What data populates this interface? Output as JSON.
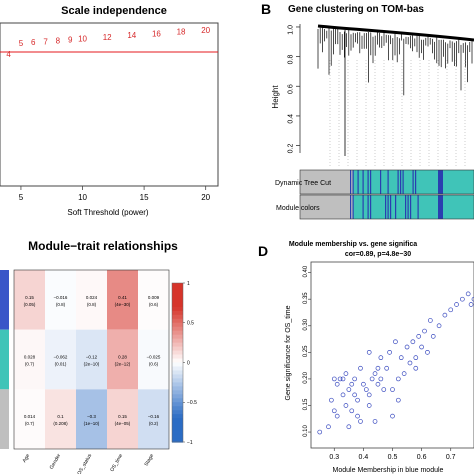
{
  "chart_data": [
    {
      "panel": "A",
      "type": "scatter",
      "title": "Scale independence",
      "xlabel": "Soft Threshold (power)",
      "x_ticks": [
        5,
        10,
        15,
        20
      ],
      "x": [
        4,
        5,
        6,
        7,
        8,
        9,
        10,
        12,
        14,
        16,
        18,
        20
      ],
      "point_labels": [
        "4",
        "5",
        "6",
        "7",
        "8",
        "9",
        "10",
        "12",
        "14",
        "16",
        "18",
        "20"
      ],
      "xlim": [
        3.3,
        21
      ],
      "threshold_line": true,
      "label_color": "#d62728",
      "line_color": "#e41a1c"
    },
    {
      "panel": "B",
      "type": "dendrogram",
      "panel_label": "B",
      "title": "Gene clustering on TOM-bas",
      "ylabel": "Height",
      "y_ticks": [
        "0.2",
        "0.4",
        "0.6",
        "0.8",
        "1.0"
      ],
      "ylim": [
        0.15,
        1.02
      ],
      "color_rows": [
        "Dynamic Tree Cut",
        "Module colors"
      ],
      "module_colors": {
        "turquoise": "#40c4b8",
        "blue": "#2a3fb0",
        "grey": "#bfbfbf"
      }
    },
    {
      "panel": "C",
      "type": "heatmap",
      "title": "Module−trait relationships",
      "columns": [
        "Age",
        "Gender",
        "OS_status",
        "OS_time",
        "Stage"
      ],
      "rows": [
        "blue",
        "turquoise",
        "grey"
      ],
      "row_colors": [
        "#3a56c8",
        "#40c4b8",
        "#bfbfbf"
      ],
      "cells": [
        [
          [
            "0.15",
            "(0.05)"
          ],
          [
            "−0.016",
            "(0.8)"
          ],
          [
            "0.024",
            "(0.8)"
          ],
          [
            "0.41",
            "(4e−30)"
          ],
          [
            "0.009",
            "(0.6)"
          ]
        ],
        [
          [
            "0.028",
            "(0.7)"
          ],
          [
            "−0.062",
            "(0.01)"
          ],
          [
            "−0.12",
            "(2e−10)"
          ],
          [
            "0.28",
            "(2e−12)"
          ],
          [
            "−0.025",
            "(0.6)"
          ]
        ],
        [
          [
            "0.014",
            "(0.7)"
          ],
          [
            "0.1",
            "(0.208)"
          ],
          [
            "−0.3",
            "(1e−10)"
          ],
          [
            "0.15",
            "(4e−05)"
          ],
          [
            "−0.16",
            "(0.2)"
          ]
        ]
      ],
      "values": [
        [
          0.15,
          -0.016,
          0.024,
          0.41,
          0.009
        ],
        [
          0.028,
          -0.062,
          -0.12,
          0.28,
          -0.025
        ],
        [
          0.014,
          0.1,
          -0.3,
          0.15,
          -0.16
        ]
      ],
      "scale_ticks": [
        "1",
        "0.5",
        "0",
        "−0.5",
        "−1"
      ],
      "scale_range": [
        -1,
        1
      ],
      "scale_colors": {
        "negative": "#2b6cc4",
        "zero": "#ffffff",
        "positive": "#d6342a"
      }
    },
    {
      "panel": "D",
      "type": "scatter",
      "panel_label": "D",
      "title": "Module membership vs. gene significa",
      "subtitle": "cor=0.89, p=4.8e−30",
      "xlabel": "Module Membership in blue module",
      "ylabel": "Gene significance for OS_time",
      "x_ticks": [
        "0.3",
        "0.4",
        "0.5",
        "0.6",
        "0.7"
      ],
      "y_ticks": [
        "0.10",
        "0.15",
        "0.20",
        "0.25",
        "0.30",
        "0.35",
        "0.40"
      ],
      "xlim": [
        0.22,
        0.78
      ],
      "ylim": [
        0.07,
        0.42
      ],
      "point_color": "#3b4cc0",
      "x": [
        0.25,
        0.28,
        0.29,
        0.3,
        0.31,
        0.31,
        0.32,
        0.33,
        0.33,
        0.34,
        0.35,
        0.35,
        0.36,
        0.37,
        0.37,
        0.38,
        0.39,
        0.39,
        0.4,
        0.41,
        0.42,
        0.42,
        0.43,
        0.44,
        0.45,
        0.45,
        0.46,
        0.47,
        0.48,
        0.49,
        0.5,
        0.5,
        0.51,
        0.52,
        0.53,
        0.54,
        0.55,
        0.56,
        0.57,
        0.58,
        0.59,
        0.6,
        0.61,
        0.62,
        0.63,
        0.64,
        0.66,
        0.68,
        0.7,
        0.72,
        0.74,
        0.76,
        0.77,
        0.78,
        0.34,
        0.38,
        0.42,
        0.46,
        0.3,
        0.36,
        0.44,
        0.52,
        0.58
      ],
      "y": [
        0.1,
        0.11,
        0.16,
        0.2,
        0.19,
        0.13,
        0.2,
        0.17,
        0.2,
        0.21,
        0.18,
        0.11,
        0.14,
        0.2,
        0.17,
        0.13,
        0.22,
        0.12,
        0.19,
        0.18,
        0.25,
        0.15,
        0.2,
        0.12,
        0.22,
        0.19,
        0.24,
        0.18,
        0.22,
        0.25,
        0.18,
        0.13,
        0.27,
        0.2,
        0.24,
        0.21,
        0.26,
        0.23,
        0.27,
        0.24,
        0.28,
        0.26,
        0.29,
        0.25,
        0.31,
        0.28,
        0.3,
        0.32,
        0.33,
        0.34,
        0.35,
        0.36,
        0.34,
        0.35,
        0.15,
        0.16,
        0.17,
        0.2,
        0.14,
        0.19,
        0.21,
        0.16,
        0.22
      ]
    }
  ]
}
